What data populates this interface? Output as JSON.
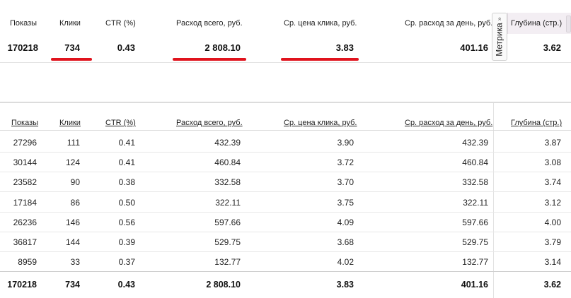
{
  "columns": {
    "shows": "Показы",
    "clicks": "Клики",
    "ctr": "CTR (%)",
    "spend": "Расход всего, руб.",
    "cpc": "Ср. цена клика, руб.",
    "daily": "Ср. расход за день, руб.",
    "depth": "Глубина (стр.)"
  },
  "metrika_tab": {
    "label": "Метрика",
    "arrows": "»"
  },
  "summary": {
    "shows": "170218",
    "clicks": "734",
    "ctr": "0.43",
    "spend": "2 808.10",
    "cpc": "3.83",
    "daily": "401.16",
    "depth": "3.62"
  },
  "rows": [
    {
      "shows": "27296",
      "clicks": "111",
      "ctr": "0.41",
      "spend": "432.39",
      "cpc": "3.90",
      "daily": "432.39",
      "depth": "3.87"
    },
    {
      "shows": "30144",
      "clicks": "124",
      "ctr": "0.41",
      "spend": "460.84",
      "cpc": "3.72",
      "daily": "460.84",
      "depth": "3.08"
    },
    {
      "shows": "23582",
      "clicks": "90",
      "ctr": "0.38",
      "spend": "332.58",
      "cpc": "3.70",
      "daily": "332.58",
      "depth": "3.74"
    },
    {
      "shows": "17184",
      "clicks": "86",
      "ctr": "0.50",
      "spend": "322.11",
      "cpc": "3.75",
      "daily": "322.11",
      "depth": "3.12"
    },
    {
      "shows": "26236",
      "clicks": "146",
      "ctr": "0.56",
      "spend": "597.66",
      "cpc": "4.09",
      "daily": "597.66",
      "depth": "4.00"
    },
    {
      "shows": "36817",
      "clicks": "144",
      "ctr": "0.39",
      "spend": "529.75",
      "cpc": "3.68",
      "daily": "529.75",
      "depth": "3.79"
    },
    {
      "shows": "8959",
      "clicks": "33",
      "ctr": "0.37",
      "spend": "132.77",
      "cpc": "4.02",
      "daily": "132.77",
      "depth": "3.14"
    }
  ],
  "total": {
    "shows": "170218",
    "clicks": "734",
    "ctr": "0.43",
    "spend": "2 808.10",
    "cpc": "3.83",
    "daily": "401.16",
    "depth": "3.62"
  },
  "highlight_color": "#e0131d"
}
